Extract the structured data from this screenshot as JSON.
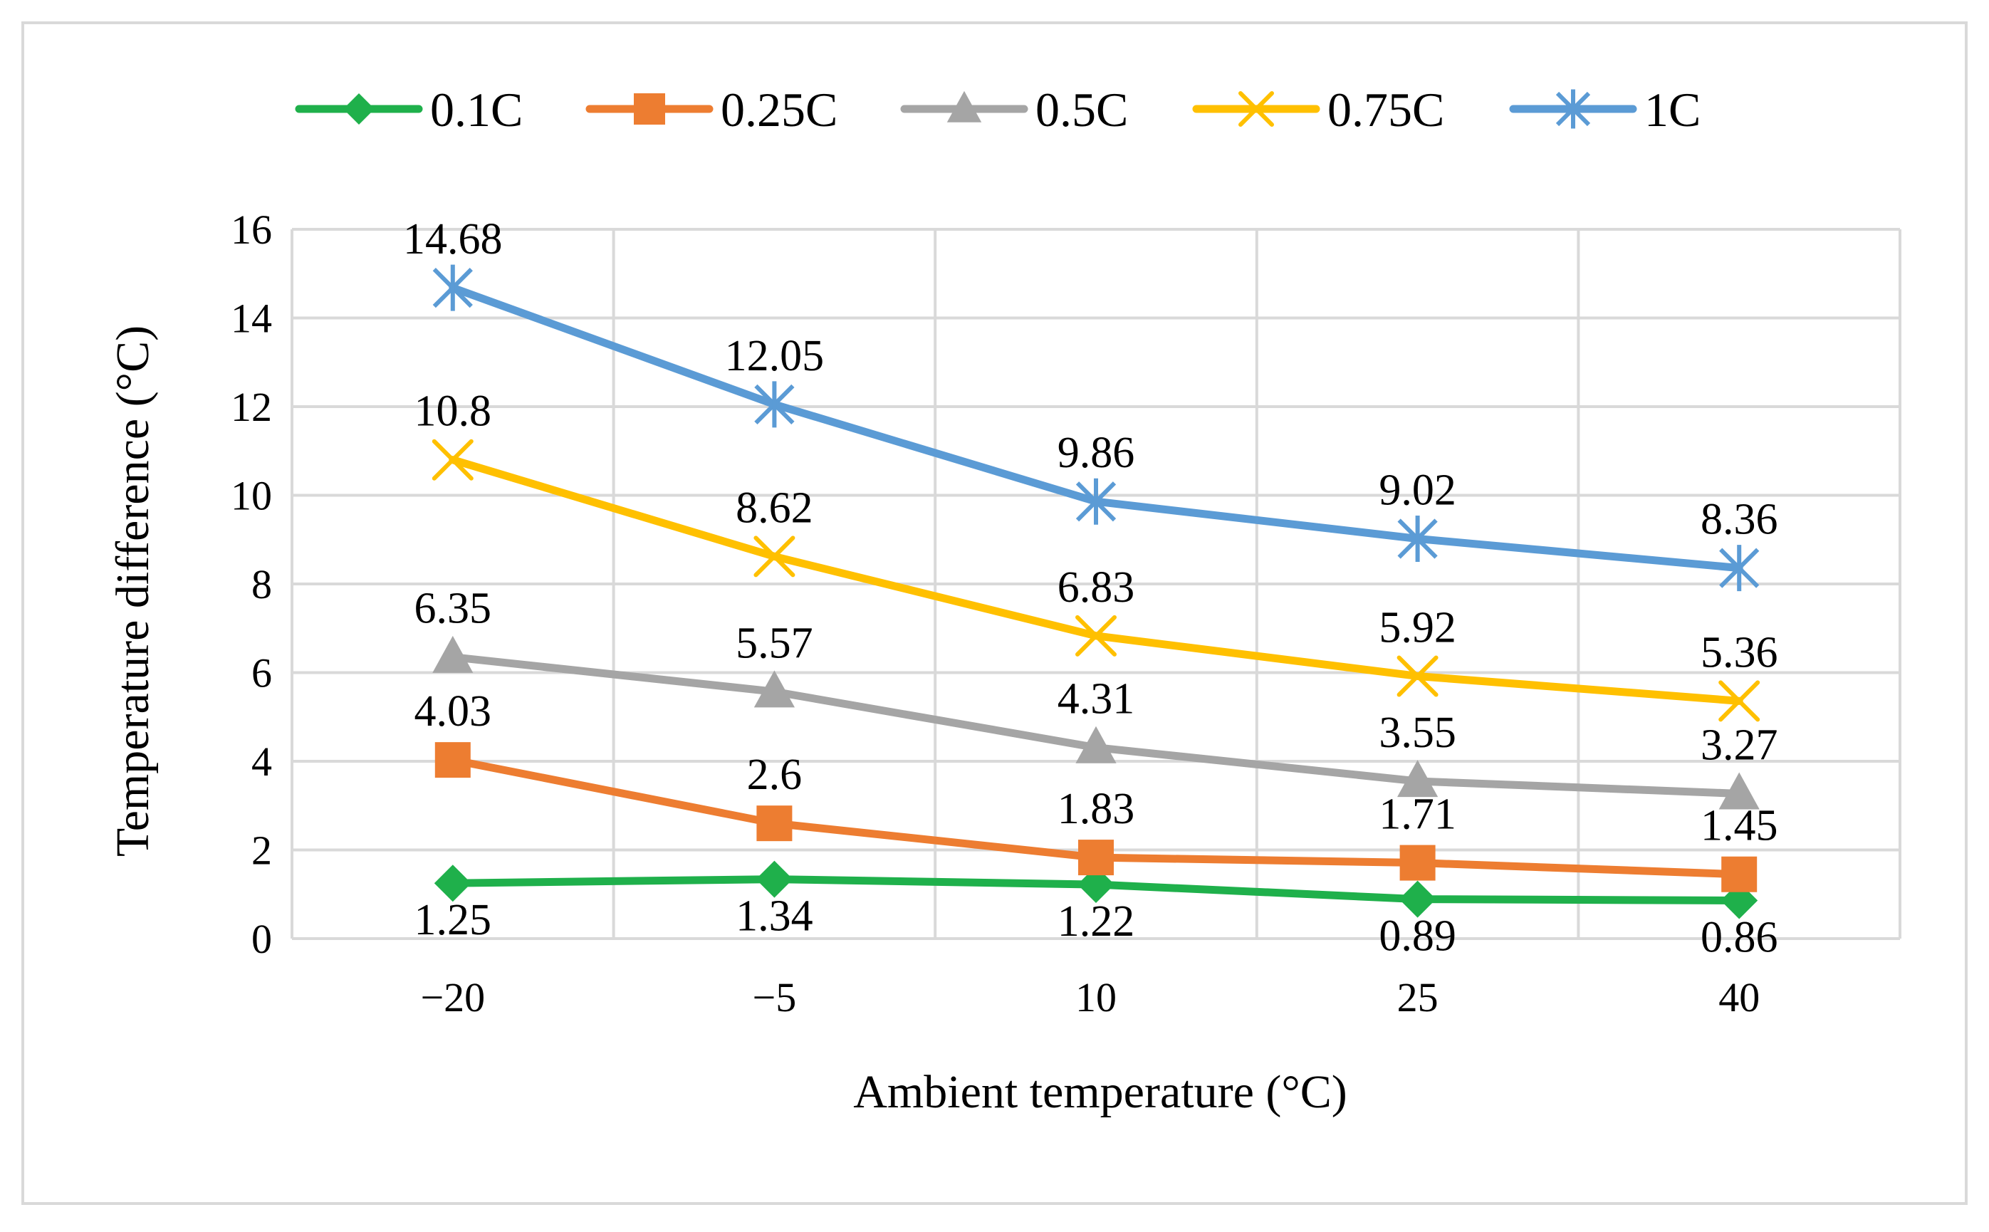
{
  "chart_data": {
    "type": "line",
    "xlabel": "Ambient temperature (°C)",
    "ylabel": "Temperature difference (°C)",
    "categories": [
      "−20",
      "−5",
      "10",
      "25",
      "40"
    ],
    "ylim": [
      0,
      16
    ],
    "yticks": [
      "0",
      "2",
      "4",
      "6",
      "8",
      "10",
      "12",
      "14",
      "16"
    ],
    "grid": true,
    "legend_position": "top",
    "series": [
      {
        "name": "0.1C",
        "color": "#1fb04b",
        "marker": "diamond",
        "values": [
          1.25,
          1.34,
          1.22,
          0.89,
          0.86
        ],
        "labels": [
          "1.25",
          "1.34",
          "1.22",
          "0.89",
          "0.86"
        ],
        "label_pos": "below"
      },
      {
        "name": "0.25C",
        "color": "#ed7d31",
        "marker": "square",
        "values": [
          4.03,
          2.6,
          1.83,
          1.71,
          1.45
        ],
        "labels": [
          "4.03",
          "2.6",
          "1.83",
          "1.71",
          "1.45"
        ],
        "label_pos": "above"
      },
      {
        "name": "0.5C",
        "color": "#a5a5a5",
        "marker": "triangle",
        "values": [
          6.35,
          5.57,
          4.31,
          3.55,
          3.27
        ],
        "labels": [
          "6.35",
          "5.57",
          "4.31",
          "3.55",
          "3.27"
        ],
        "label_pos": "above"
      },
      {
        "name": "0.75C",
        "color": "#ffc000",
        "marker": "x",
        "values": [
          10.8,
          8.62,
          6.83,
          5.92,
          5.36
        ],
        "labels": [
          "10.8",
          "8.62",
          "6.83",
          "5.92",
          "5.36"
        ],
        "label_pos": "above"
      },
      {
        "name": "1C",
        "color": "#5b9bd5",
        "marker": "star",
        "values": [
          14.68,
          12.05,
          9.86,
          9.02,
          8.36
        ],
        "labels": [
          "14.68",
          "12.05",
          "9.86",
          "9.02",
          "8.36"
        ],
        "label_pos": "above"
      }
    ],
    "gridline_color": "#d9d9d9"
  }
}
